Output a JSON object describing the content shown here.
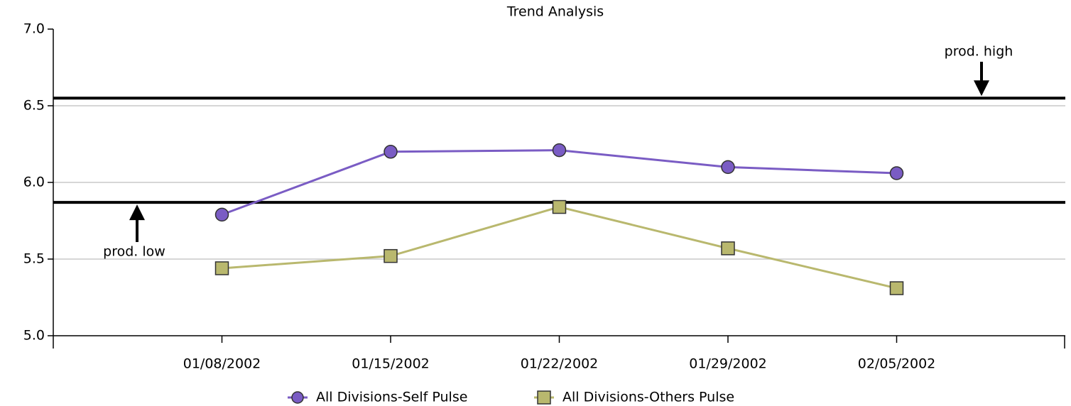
{
  "chart_data": {
    "type": "line",
    "title": "Trend Analysis",
    "categories": [
      "01/08/2002",
      "01/15/2002",
      "01/22/2002",
      "01/29/2002",
      "02/05/2002"
    ],
    "series": [
      {
        "name": "All Divisions-Self Pulse",
        "color": "#7a5cc4",
        "marker": "circle",
        "values": [
          5.79,
          6.2,
          6.21,
          6.1,
          6.06
        ]
      },
      {
        "name": "All Divisions-Others Pulse",
        "color": "#b9b86e",
        "marker": "square",
        "values": [
          5.44,
          5.52,
          5.84,
          5.57,
          5.31
        ]
      }
    ],
    "reference_lines": [
      {
        "label": "prod. high",
        "value": 6.55
      },
      {
        "label": "prod. low",
        "value": 5.87
      }
    ],
    "ylim": [
      5.0,
      7.0
    ],
    "yticks": [
      {
        "value": 5.0,
        "label": "5.0"
      },
      {
        "value": 5.5,
        "label": "5.5"
      },
      {
        "value": 6.0,
        "label": "6.0"
      },
      {
        "value": 6.5,
        "label": "6.5"
      },
      {
        "value": 7.0,
        "label": "7.0"
      }
    ],
    "grid": true,
    "legend": "bottom"
  }
}
